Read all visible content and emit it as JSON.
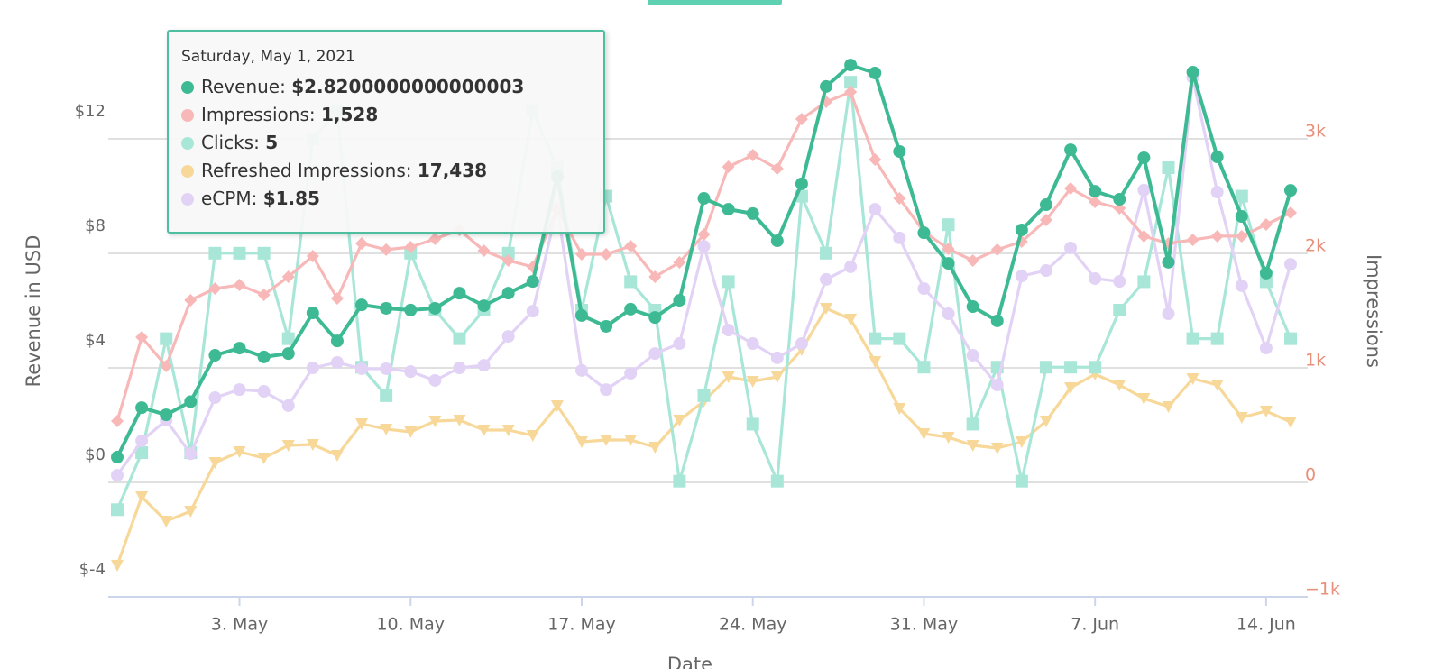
{
  "chart_data": {
    "type": "line",
    "x": [
      "2021-04-28",
      "2021-04-29",
      "2021-04-30",
      "2021-05-01",
      "2021-05-02",
      "2021-05-03",
      "2021-05-04",
      "2021-05-05",
      "2021-05-06",
      "2021-05-07",
      "2021-05-08",
      "2021-05-09",
      "2021-05-10",
      "2021-05-11",
      "2021-05-12",
      "2021-05-13",
      "2021-05-14",
      "2021-05-15",
      "2021-05-16",
      "2021-05-17",
      "2021-05-18",
      "2021-05-19",
      "2021-05-20",
      "2021-05-21",
      "2021-05-22",
      "2021-05-23",
      "2021-05-24",
      "2021-05-25",
      "2021-05-26",
      "2021-05-27",
      "2021-05-28",
      "2021-05-29",
      "2021-05-30",
      "2021-05-31",
      "2021-06-01",
      "2021-06-02",
      "2021-06-03",
      "2021-06-04",
      "2021-06-05",
      "2021-06-06",
      "2021-06-07",
      "2021-06-08",
      "2021-06-09",
      "2021-06-10",
      "2021-06-11",
      "2021-06-12",
      "2021-06-13",
      "2021-06-14",
      "2021-06-15"
    ],
    "xlim": [
      "2021-04-28",
      "2021-06-15"
    ],
    "xticks": [
      {
        "value": "2021-05-03",
        "label": "3. May"
      },
      {
        "value": "2021-05-10",
        "label": "10. May"
      },
      {
        "value": "2021-05-17",
        "label": "17. May"
      },
      {
        "value": "2021-05-24",
        "label": "24. May"
      },
      {
        "value": "2021-05-31",
        "label": "31. May"
      },
      {
        "value": "2021-06-07",
        "label": "7. Jun"
      },
      {
        "value": "2021-06-14",
        "label": "14. Jun"
      }
    ],
    "x_label": "Date",
    "y_label": "Revenue in USD",
    "y2_label": "Impressions",
    "ylim": [
      -4,
      16
    ],
    "yticks": [
      {
        "value": -4,
        "label": "$-4"
      },
      {
        "value": 0,
        "label": "$0"
      },
      {
        "value": 4,
        "label": "$4"
      },
      {
        "value": 8,
        "label": "$8"
      },
      {
        "value": 12,
        "label": "$12"
      }
    ],
    "y2lim": [
      -1063,
      3937
    ],
    "y2ticks": [
      {
        "value": -1000,
        "label": "−1k"
      },
      0,
      {
        "value": 1000,
        "label": "1k"
      },
      {
        "value": 2000,
        "label": "2k"
      },
      {
        "value": 3000,
        "label": "3k"
      }
    ],
    "y3lim": [
      -0.06,
      20.03
    ],
    "y4lim": [
      0,
      116586
    ],
    "y5lim": [
      -3.15,
      16.85
    ],
    "grid": true,
    "series": [
      {
        "name": "Revenue",
        "color": "#3dba93",
        "marker": "circle",
        "axis": "y",
        "values": [
          0.88,
          2.61,
          2.36,
          2.82,
          4.44,
          4.69,
          4.38,
          4.5,
          5.92,
          4.94,
          6.2,
          6.08,
          6.02,
          6.08,
          6.61,
          6.17,
          6.61,
          7.02,
          10.68,
          5.83,
          5.45,
          6.05,
          5.76,
          6.36,
          9.92,
          9.54,
          9.39,
          8.44,
          10.43,
          13.83,
          14.58,
          14.3,
          11.56,
          8.72,
          7.65,
          6.14,
          5.64,
          8.82,
          9.7,
          11.62,
          10.17,
          9.89,
          11.34,
          7.69,
          14.33,
          11.37,
          9.29,
          7.31,
          10.2
        ]
      },
      {
        "name": "Impressions",
        "color": "#f8b8b8",
        "marker": "diamond",
        "axis": "y2",
        "values": [
          472,
          1205,
          953,
          1528,
          1630,
          1661,
          1575,
          1732,
          1913,
          1543,
          2024,
          1969,
          1992,
          2063,
          2142,
          1961,
          1874,
          1819,
          2323,
          1929,
          1929,
          2000,
          1732,
          1858,
          2102,
          2693,
          2795,
          2677,
          3110,
          3260,
          3346,
          2756,
          2417,
          2126,
          1976,
          1874,
          1969,
          2039,
          2228,
          2504,
          2386,
          2331,
          2087,
          2024,
          2055,
          2087,
          2087,
          2189,
          2291
        ]
      },
      {
        "name": "Clicks",
        "color": "#a8e6d8",
        "marker": "square",
        "axis": "y3",
        "values": [
          3,
          5,
          9,
          5,
          12,
          12,
          12,
          9,
          16,
          17,
          8,
          7,
          12,
          10,
          9,
          10,
          12,
          17,
          15,
          10,
          14,
          11,
          10,
          4,
          7,
          11,
          6,
          4,
          14,
          12,
          18,
          9,
          9,
          8,
          13,
          6,
          8,
          4,
          8,
          8,
          8,
          10,
          11,
          15,
          9,
          9,
          14,
          11,
          9
        ]
      },
      {
        "name": "Refreshed Impressions",
        "color": "#f7d899",
        "marker": "triangle-down",
        "axis": "y4",
        "values": [
          6426,
          20380,
          15422,
          17438,
          27356,
          29560,
          28274,
          30845,
          31028,
          28825,
          35251,
          34150,
          33599,
          35802,
          35986,
          33966,
          33966,
          32864,
          38923,
          31579,
          31946,
          31946,
          30478,
          35986,
          39841,
          44798,
          43880,
          44798,
          50306,
          58752,
          56549,
          47920,
          38372,
          33232,
          32497,
          30845,
          30294,
          31579,
          35802,
          42595,
          45349,
          43146,
          40392,
          38740,
          44431,
          43146,
          36536,
          37822,
          35618
        ]
      },
      {
        "name": "eCPM",
        "color": "#e2d3f6",
        "marker": "circle",
        "axis": "y5",
        "values": [
          1.1,
          2.3,
          3.02,
          1.85,
          3.81,
          4.09,
          4.03,
          3.53,
          4.85,
          5.04,
          4.82,
          4.82,
          4.72,
          4.41,
          4.85,
          4.94,
          5.95,
          6.83,
          10.46,
          4.76,
          4.09,
          4.66,
          5.35,
          5.7,
          9.1,
          6.17,
          5.7,
          5.2,
          5.7,
          7.94,
          8.38,
          10.39,
          9.39,
          7.62,
          6.74,
          5.29,
          4.25,
          8.06,
          8.25,
          9.04,
          7.97,
          7.87,
          11.06,
          6.74,
          14.99,
          10.99,
          7.72,
          5.54,
          8.47
        ]
      }
    ],
    "tooltip": {
      "title": "Saturday, May 1, 2021",
      "items": [
        {
          "name": "Revenue:",
          "value": "$2.8200000000000003"
        },
        {
          "name": "Impressions:",
          "value": "1,528"
        },
        {
          "name": "Clicks:",
          "value": "5"
        },
        {
          "name": "Refreshed Impressions:",
          "value": "17,438"
        },
        {
          "name": "eCPM:",
          "value": "$1.85"
        }
      ]
    }
  }
}
